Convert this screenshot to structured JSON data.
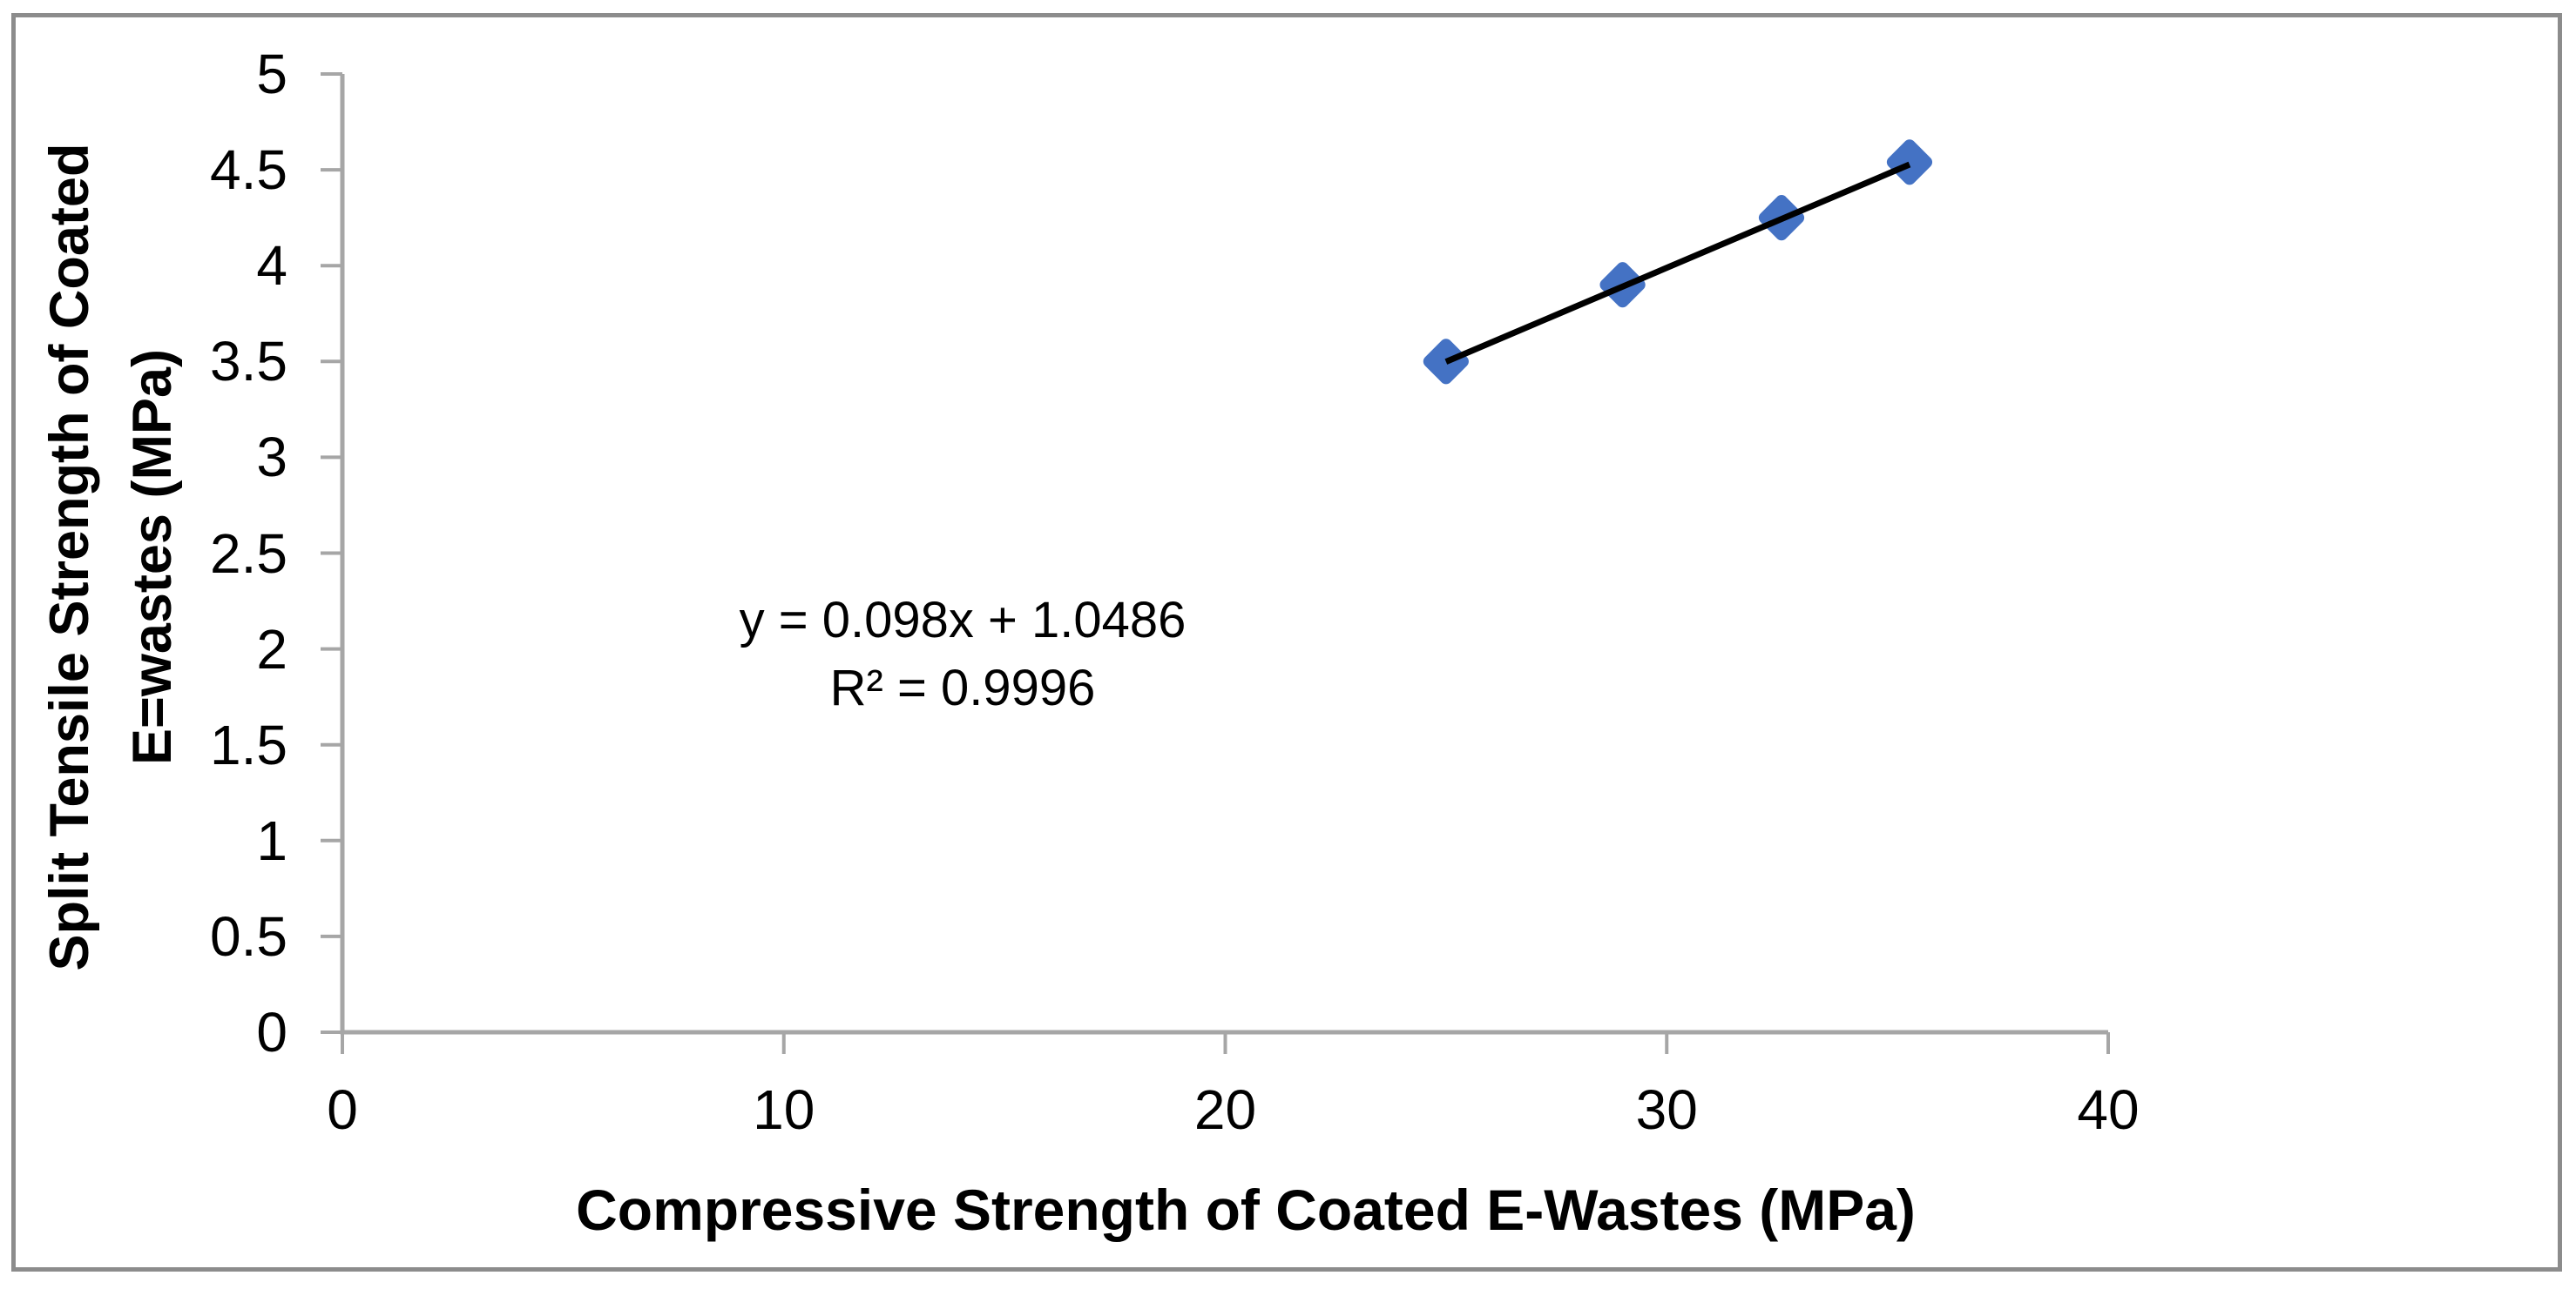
{
  "colors": {
    "background": "#FFFFFF",
    "border": "#8C8C8C",
    "axis": "#A6A6A6",
    "text": "#000000"
  },
  "chart_data": {
    "type": "scatter",
    "title": "",
    "xlabel": "Compressive Strength of Coated E-Wastes (MPa)",
    "ylabel": "Split Tensile Strength of Coated E=wastes  (MPa)",
    "ylabel_lines": [
      "Split Tensile Strength of Coated",
      "E=wastes  (MPa)"
    ],
    "xlim": [
      0,
      40
    ],
    "ylim": [
      0,
      5
    ],
    "x_ticks": [
      0,
      10,
      20,
      30,
      40
    ],
    "x_tick_labels": [
      "0",
      "10",
      "20",
      "30",
      "40"
    ],
    "y_ticks": [
      0,
      0.5,
      1,
      1.5,
      2,
      2.5,
      3,
      3.5,
      4,
      4.5,
      5
    ],
    "y_tick_labels": [
      "0",
      "0.5",
      "1",
      "1.5",
      "2",
      "2.5",
      "3",
      "3.5",
      "4",
      "4.5",
      "5"
    ],
    "grid": false,
    "legend": false,
    "series": [
      {
        "name": "Split Tensile vs Compressive Strength",
        "marker": "diamond",
        "color": "#4472C4",
        "points": [
          {
            "x": 25.0,
            "y": 3.5
          },
          {
            "x": 29.0,
            "y": 3.9
          },
          {
            "x": 32.6,
            "y": 4.25
          },
          {
            "x": 35.5,
            "y": 4.54
          }
        ]
      }
    ],
    "trendline": {
      "slope": 0.098,
      "intercept": 1.0486,
      "x_start": 25.0,
      "x_end": 35.5,
      "color": "#000000",
      "equation": "y = 0.098x + 1.0486",
      "r_squared": "R² = 0.9996"
    }
  }
}
